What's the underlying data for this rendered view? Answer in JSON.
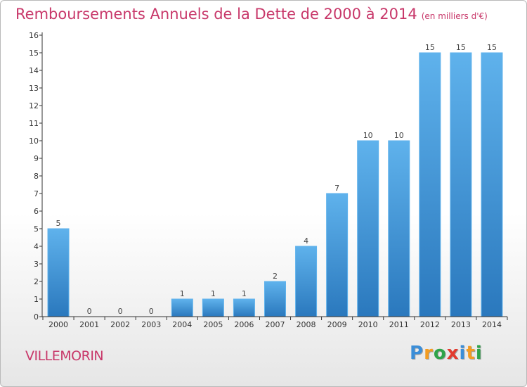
{
  "chart_data": {
    "type": "bar",
    "title": "Remboursements Annuels de la Dette de 2000 à 2014",
    "subtitle": "(en milliers d'€)",
    "categories": [
      "2000",
      "2001",
      "2002",
      "2003",
      "2004",
      "2005",
      "2006",
      "2007",
      "2008",
      "2009",
      "2010",
      "2011",
      "2012",
      "2013",
      "2014"
    ],
    "values": [
      5,
      0,
      0,
      0,
      1,
      1,
      1,
      2,
      4,
      7,
      10,
      10,
      15,
      15,
      15
    ],
    "yticks": [
      0,
      1,
      2,
      3,
      4,
      5,
      6,
      7,
      8,
      9,
      10,
      11,
      12,
      13,
      14,
      15,
      16
    ],
    "ylim": [
      0,
      16
    ],
    "xlabel": "",
    "ylabel": "",
    "grid": false,
    "bar_color": "#3a93d8",
    "bar_color_light": "#5fb2ec",
    "bar_color_dark": "#2a78bd"
  },
  "footer": {
    "commune": "VILLEMORIN",
    "brand_letters": [
      "P",
      "r",
      "o",
      "x",
      "i",
      "t",
      "i"
    ],
    "brand_colors": [
      "#3b8ed8",
      "#f39c21",
      "#2fa44a",
      "#e23c2f",
      "#3b8ed8",
      "#f39c21",
      "#2fa44a"
    ]
  },
  "colors": {
    "title": "#c8386a",
    "axis": "#333333"
  }
}
